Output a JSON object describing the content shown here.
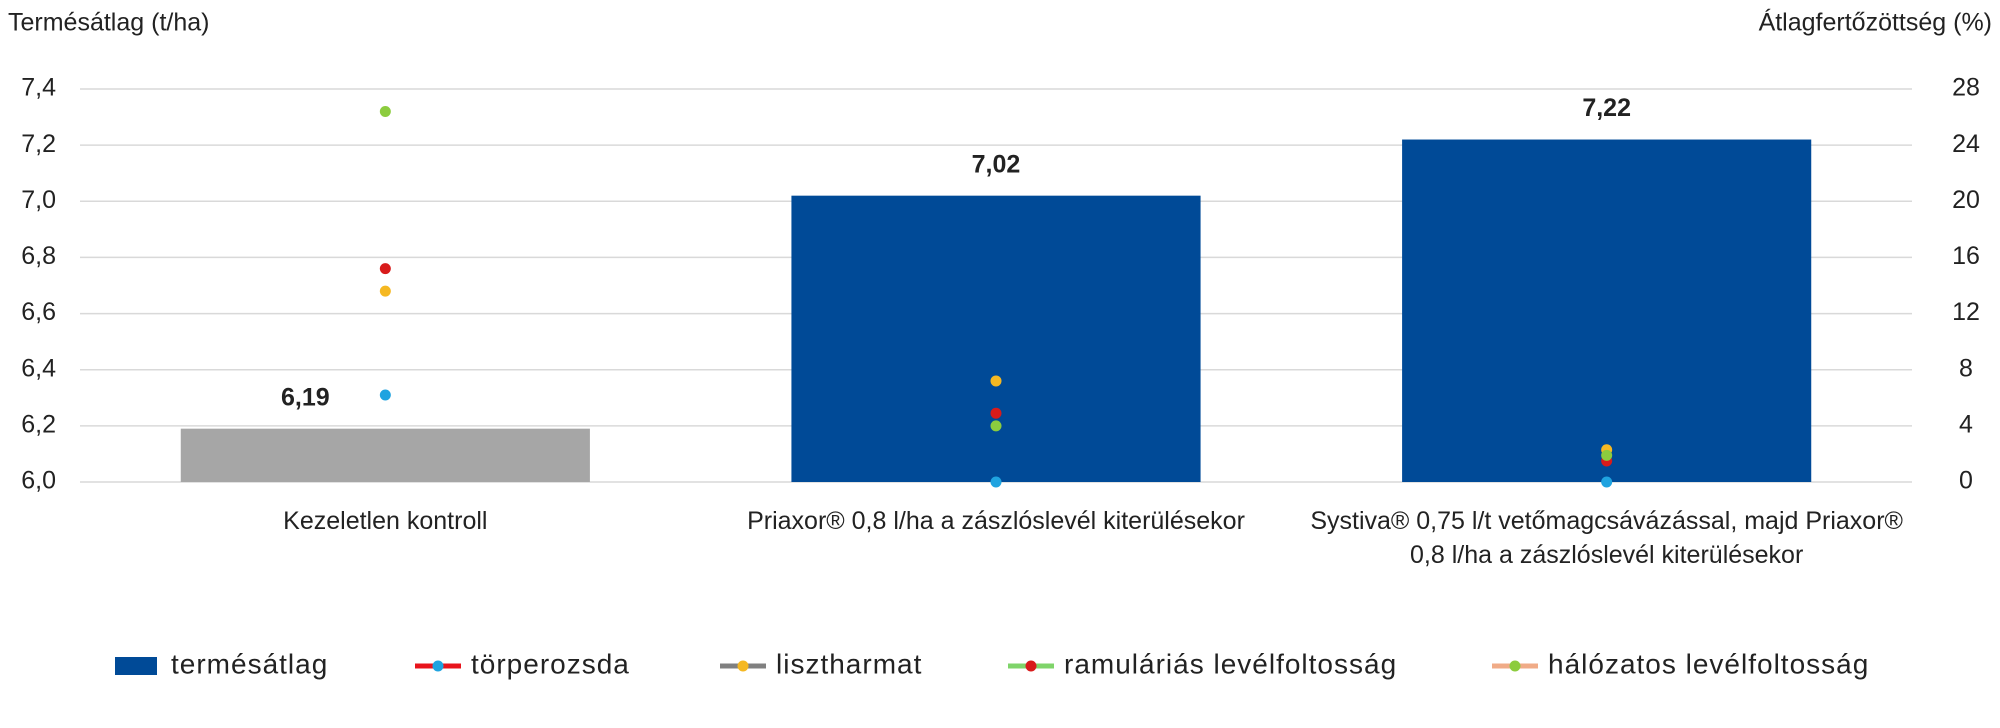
{
  "chart_data": {
    "type": "bar",
    "ylabel": "Termésátlag (t/ha)",
    "y2label": "Átlagfertőzöttség (%)",
    "categories": [
      "Kezeletlen kontroll",
      "Priaxor® 0,8 l/ha a zászlóslevél kiterülésekor",
      "Systiva® 0,75 l/t vetőmagcsávázással, majd Priaxor® 0,8 l/ha a zászlóslevél kiterülésekor"
    ],
    "ylim": [
      6.0,
      7.4
    ],
    "yticks": [
      {
        "value": 6.0,
        "label": "6,0"
      },
      {
        "value": 6.2,
        "label": "6,2"
      },
      {
        "value": 6.4,
        "label": "6,4"
      },
      {
        "value": 6.6,
        "label": "6,6"
      },
      {
        "value": 6.8,
        "label": "6,8"
      },
      {
        "value": 7.0,
        "label": "7,0"
      },
      {
        "value": 7.2,
        "label": "7,2"
      },
      {
        "value": 7.4,
        "label": "7,4"
      }
    ],
    "y2lim": [
      0,
      28
    ],
    "y2ticks": [
      0,
      4,
      8,
      12,
      16,
      20,
      24,
      28
    ],
    "grid": true,
    "legend": "bottom",
    "series": [
      {
        "name": "termésátlag",
        "type": "bar",
        "color": "#004a97",
        "colors": [
          "#a6a6a6",
          "#004a97",
          "#004a97"
        ],
        "values": [
          6.19,
          7.02,
          7.22
        ],
        "value_labels": [
          "6,19",
          "7,02",
          "7,22"
        ]
      },
      {
        "name": "törperozsda",
        "type": "line",
        "axis": "y2",
        "color": "#e8141c",
        "marker_color": "#1fa3e0",
        "values": [
          6.2,
          0,
          0
        ]
      },
      {
        "name": "lisztharmat",
        "type": "line",
        "axis": "y2",
        "color": "#808080",
        "marker_color": "#f5b822",
        "values": [
          13.6,
          7.2,
          2.3
        ]
      },
      {
        "name": "ramuláriás levélfoltosság",
        "type": "line",
        "axis": "y2",
        "color": "#7fd46a",
        "marker_color": "#d81b1b",
        "values": [
          15.2,
          4.9,
          1.5
        ]
      },
      {
        "name": "hálózatos levélfoltosság",
        "type": "line",
        "axis": "y2",
        "color": "#f0ab87",
        "marker_color": "#8ccc3e",
        "values": [
          26.4,
          4.0,
          1.9
        ]
      }
    ]
  }
}
